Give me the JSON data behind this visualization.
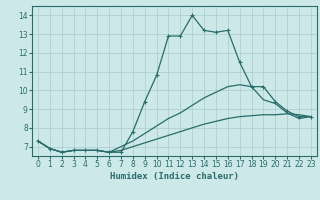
{
  "title": "",
  "xlabel": "Humidex (Indice chaleur)",
  "ylabel": "",
  "bg_color": "#cce8e8",
  "grid_color": "#aacccc",
  "line_color": "#2a6b6b",
  "xlim": [
    -0.5,
    23.5
  ],
  "ylim": [
    6.5,
    14.5
  ],
  "xticks": [
    0,
    1,
    2,
    3,
    4,
    5,
    6,
    7,
    8,
    9,
    10,
    11,
    12,
    13,
    14,
    15,
    16,
    17,
    18,
    19,
    20,
    21,
    22,
    23
  ],
  "yticks": [
    7,
    8,
    9,
    10,
    11,
    12,
    13,
    14
  ],
  "line1_x": [
    0,
    1,
    2,
    3,
    4,
    5,
    6,
    7,
    8,
    9,
    10,
    11,
    12,
    13,
    14,
    15,
    16,
    17,
    18,
    19,
    20,
    21,
    22,
    23
  ],
  "line1_y": [
    7.3,
    6.9,
    6.7,
    6.8,
    6.8,
    6.8,
    6.7,
    6.7,
    7.8,
    9.4,
    10.8,
    12.9,
    12.9,
    14.0,
    13.2,
    13.1,
    13.2,
    11.5,
    10.2,
    10.2,
    9.4,
    8.9,
    8.6,
    8.6
  ],
  "line2_x": [
    0,
    1,
    2,
    3,
    4,
    5,
    6,
    7,
    8,
    9,
    10,
    11,
    12,
    13,
    14,
    15,
    16,
    17,
    18,
    19,
    20,
    21,
    22,
    23
  ],
  "line2_y": [
    7.3,
    6.9,
    6.7,
    6.8,
    6.8,
    6.8,
    6.7,
    7.0,
    7.3,
    7.7,
    8.1,
    8.5,
    8.8,
    9.2,
    9.6,
    9.9,
    10.2,
    10.3,
    10.2,
    9.5,
    9.3,
    8.8,
    8.5,
    8.6
  ],
  "line3_x": [
    0,
    1,
    2,
    3,
    4,
    5,
    6,
    7,
    8,
    9,
    10,
    11,
    12,
    13,
    14,
    15,
    16,
    17,
    18,
    19,
    20,
    21,
    22,
    23
  ],
  "line3_y": [
    7.3,
    6.9,
    6.7,
    6.8,
    6.8,
    6.8,
    6.7,
    6.8,
    7.0,
    7.2,
    7.4,
    7.6,
    7.8,
    8.0,
    8.2,
    8.35,
    8.5,
    8.6,
    8.65,
    8.7,
    8.7,
    8.75,
    8.7,
    8.6
  ]
}
